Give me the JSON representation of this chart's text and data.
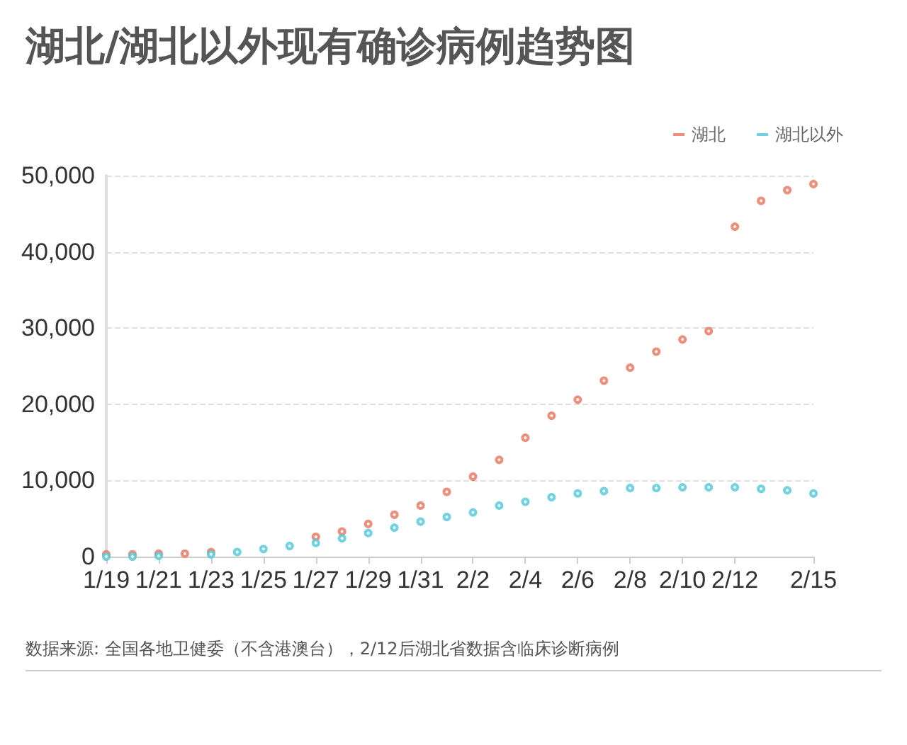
{
  "chart_data": {
    "type": "scatter",
    "title": "湖北/湖北以外现有确诊病例趋势图",
    "x": [
      "--01-19",
      "--01-20",
      "--01-21",
      "--01-22",
      "--01-23",
      "--01-24",
      "--01-25",
      "--01-26",
      "--01-27",
      "--01-28",
      "--01-29",
      "--01-30",
      "--01-31",
      "--02-01",
      "--02-02",
      "--02-03",
      "--02-04",
      "--02-05",
      "--02-06",
      "--02-07",
      "--02-08",
      "--02-09",
      "--02-10",
      "--02-11",
      "--02-12",
      "--02-13",
      "--02-14",
      "--02-15"
    ],
    "series": [
      {
        "name": "湖北",
        "color": "#e8735a",
        "values": [
          300,
          300,
          400,
          400,
          600,
          null,
          null,
          null,
          2600,
          3300,
          4300,
          5500,
          6700,
          8500,
          10500,
          12700,
          15600,
          18500,
          20600,
          23100,
          24800,
          26900,
          28500,
          29600,
          43300,
          46700,
          48100,
          48900
        ]
      },
      {
        "name": "湖北以外",
        "color": "#4fc8d8",
        "values": [
          0,
          0,
          100,
          null,
          300,
          600,
          1000,
          1400,
          1800,
          2400,
          3100,
          3800,
          4600,
          5200,
          5800,
          6700,
          7200,
          7800,
          8300,
          8600,
          9000,
          9000,
          9100,
          9100,
          9100,
          8900,
          8700,
          8300
        ]
      }
    ],
    "xlim": [
      "--01-19",
      "--02-15"
    ],
    "xticks": [
      {
        "value": "--01-19",
        "label": "1/19"
      },
      {
        "value": "--01-21",
        "label": "1/21"
      },
      {
        "value": "--01-23",
        "label": "1/23"
      },
      {
        "value": "--01-25",
        "label": "1/25"
      },
      {
        "value": "--01-27",
        "label": "1/27"
      },
      {
        "value": "--01-29",
        "label": "1/29"
      },
      {
        "value": "--01-31",
        "label": "1/31"
      },
      {
        "value": "--02-02",
        "label": "2/2"
      },
      {
        "value": "--02-04",
        "label": "2/4"
      },
      {
        "value": "--02-06",
        "label": "2/6"
      },
      {
        "value": "--02-08",
        "label": "2/8"
      },
      {
        "value": "--02-10",
        "label": "2/10"
      },
      {
        "value": "--02-12",
        "label": "2/12"
      },
      {
        "value": "--02-15",
        "label": "2/15"
      }
    ],
    "ylim": [
      0,
      50000
    ],
    "yticks": [
      {
        "value": 0,
        "label": "0"
      },
      {
        "value": 10000,
        "label": "10,000"
      },
      {
        "value": 20000,
        "label": "20,000"
      },
      {
        "value": 30000,
        "label": "30,000"
      },
      {
        "value": 40000,
        "label": "40,000"
      },
      {
        "value": 50000,
        "label": "50,000"
      }
    ],
    "grid": "y",
    "legend": "top right",
    "marker": "circle",
    "annotations": [
      "数据来源: 全国各地卫健委（不含港澳台），2/12后湖北省数据含临床诊断病例"
    ]
  }
}
